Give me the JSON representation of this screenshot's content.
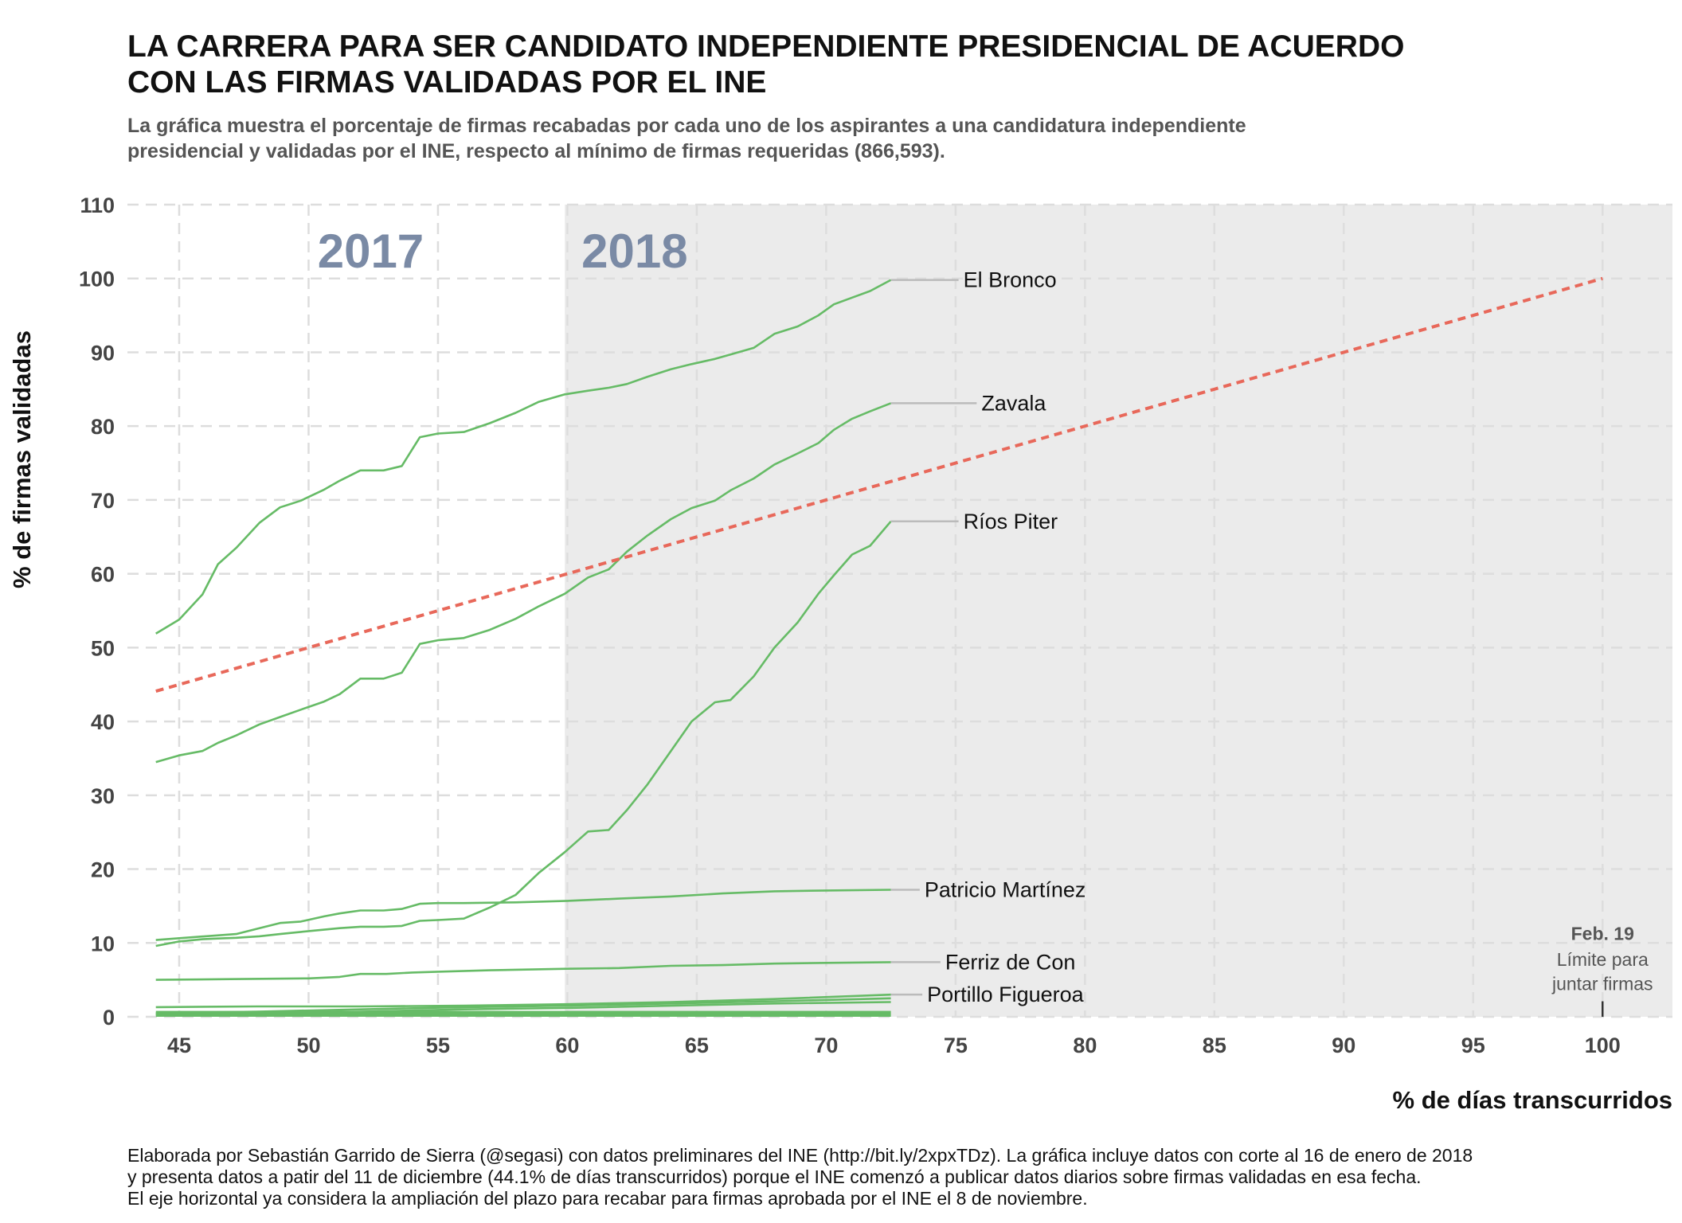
{
  "header": {
    "title_line1": "LA CARRERA PARA SER CANDIDATO INDEPENDIENTE PRESIDENCIAL DE ACUERDO",
    "title_line2": "CON LAS FIRMAS VALIDADAS POR EL INE",
    "subtitle_line1": "La gráfica muestra el porcentaje de firmas recabadas por cada uno de los aspirantes a una candidatura independiente",
    "subtitle_line2": "presidencial y validadas por el INE, respecto al mínimo de firmas requeridas (866,593)."
  },
  "caption": {
    "line1": "Elaborada por Sebastián Garrido de Sierra (@segasi) con datos preliminares del INE (http://bit.ly/2xpxTDz). La gráfica incluye datos con corte al 16 de enero de 2018",
    "line2": "y presenta datos a patir del 11 de diciembre (44.1% de días transcurridos) porque el INE comenzó a publicar datos diarios sobre firmas validadas en esa fecha.",
    "line3": "El eje horizontal ya considera la ampliación del plazo para recabar para firmas aprobada por el INE el 8 de noviembre."
  },
  "colors": {
    "series": "#66bb66",
    "reference_line": "#e8685a",
    "shaded_region": "#ebebeb",
    "year_label": "#7a8aa5",
    "grid": "#dddddd",
    "leader": "#bbbbbb"
  },
  "chart_data": {
    "type": "line",
    "xlabel": "% de días transcurridos",
    "ylabel": "% de firmas validadas",
    "xlim": [
      43,
      102.7
    ],
    "ylim": [
      0,
      110
    ],
    "x_ticks": [
      45,
      50,
      55,
      60,
      65,
      70,
      75,
      80,
      85,
      90,
      95,
      100
    ],
    "y_ticks": [
      0,
      10,
      20,
      30,
      40,
      50,
      60,
      70,
      80,
      90,
      100,
      110
    ],
    "grid": true,
    "shaded_region": {
      "x_start": 59.9,
      "x_end": 102.7
    },
    "year_labels": [
      {
        "text": "2017",
        "x": 52.4,
        "y": 101.5
      },
      {
        "text": "2018",
        "x": 62.6,
        "y": 101.5
      }
    ],
    "reference_line": {
      "x": [
        44.1,
        100
      ],
      "y": [
        44.1,
        100
      ]
    },
    "annotation": {
      "title": "Feb. 19",
      "line1": "Límite para",
      "line2": "juntar firmas",
      "x": 100
    },
    "series": [
      {
        "name": "El Bronco",
        "label_x": 75.3,
        "x": [
          44.1,
          45.0,
          45.9,
          46.5,
          47.2,
          48.1,
          48.9,
          49.7,
          50.6,
          51.2,
          52.0,
          52.9,
          53.6,
          54.3,
          55.0,
          56.0,
          57.0,
          58.0,
          58.9,
          59.9,
          60.8,
          61.6,
          62.3,
          63.1,
          64.0,
          64.8,
          65.7,
          66.3,
          67.2,
          68.0,
          68.9,
          69.7,
          70.3,
          71.0,
          71.7,
          72.5
        ],
        "y": [
          51.9,
          53.8,
          57.2,
          61.3,
          63.5,
          66.9,
          69.0,
          69.9,
          71.4,
          72.6,
          74.0,
          74.0,
          74.6,
          78.5,
          79.0,
          79.2,
          80.4,
          81.8,
          83.3,
          84.3,
          84.8,
          85.2,
          85.7,
          86.7,
          87.7,
          88.4,
          89.1,
          89.7,
          90.6,
          92.5,
          93.5,
          95.0,
          96.5,
          97.4,
          98.3,
          99.8
        ]
      },
      {
        "name": "Zavala",
        "label_x": 76.0,
        "x": [
          44.1,
          45.0,
          45.9,
          46.5,
          47.2,
          48.1,
          48.9,
          49.7,
          50.6,
          51.2,
          52.0,
          52.9,
          53.6,
          54.3,
          55.0,
          56.0,
          57.0,
          58.0,
          58.9,
          59.9,
          60.8,
          61.6,
          62.3,
          63.1,
          64.0,
          64.8,
          65.7,
          66.3,
          67.2,
          68.0,
          68.9,
          69.7,
          70.3,
          71.0,
          71.7,
          72.5
        ],
        "y": [
          34.5,
          35.4,
          36.0,
          37.1,
          38.1,
          39.6,
          40.6,
          41.6,
          42.7,
          43.7,
          45.8,
          45.8,
          46.6,
          50.5,
          51.0,
          51.3,
          52.4,
          53.9,
          55.6,
          57.3,
          59.5,
          60.6,
          63.0,
          65.2,
          67.4,
          68.9,
          69.9,
          71.3,
          72.9,
          74.8,
          76.3,
          77.7,
          79.5,
          81.0,
          82.0,
          83.1
        ]
      },
      {
        "name": "Ríos Piter",
        "label_x": 75.3,
        "x": [
          44.1,
          45.0,
          45.9,
          46.5,
          47.2,
          48.1,
          48.9,
          49.7,
          50.6,
          51.2,
          52.0,
          52.9,
          53.6,
          54.3,
          55.0,
          56.0,
          57.0,
          58.0,
          58.9,
          59.9,
          60.8,
          61.6,
          62.3,
          63.1,
          64.0,
          64.8,
          65.7,
          66.3,
          67.2,
          68.0,
          68.9,
          69.7,
          70.3,
          71.0,
          71.7,
          72.5
        ],
        "y": [
          9.6,
          10.2,
          10.5,
          10.6,
          10.7,
          10.9,
          11.2,
          11.5,
          11.8,
          12.0,
          12.2,
          12.2,
          12.3,
          13.0,
          13.1,
          13.3,
          14.8,
          16.5,
          19.5,
          22.3,
          25.1,
          25.3,
          28.0,
          31.5,
          36.0,
          40.0,
          42.6,
          42.9,
          46.1,
          50.0,
          53.4,
          57.3,
          59.8,
          62.6,
          63.8,
          67.1
        ]
      },
      {
        "name": "Patricio Martínez",
        "label_x": 73.8,
        "x": [
          44.1,
          46.0,
          47.2,
          48.1,
          48.9,
          49.7,
          50.6,
          51.2,
          52.0,
          52.9,
          53.6,
          54.3,
          55.0,
          56.0,
          58.0,
          60.0,
          62.0,
          64.0,
          66.0,
          68.0,
          70.0,
          72.5
        ],
        "y": [
          10.4,
          10.9,
          11.2,
          12.0,
          12.7,
          12.9,
          13.6,
          14.0,
          14.4,
          14.4,
          14.6,
          15.3,
          15.4,
          15.4,
          15.5,
          15.7,
          16.0,
          16.3,
          16.7,
          17.0,
          17.1,
          17.2
        ]
      },
      {
        "name": "Ferriz de Con",
        "label_x": 74.6,
        "x": [
          44.1,
          47.0,
          50.0,
          51.2,
          52.0,
          53.0,
          54.0,
          55.0,
          57.0,
          60.0,
          62.0,
          64.0,
          66.0,
          68.0,
          70.0,
          72.5
        ],
        "y": [
          5.0,
          5.1,
          5.2,
          5.4,
          5.8,
          5.8,
          6.0,
          6.1,
          6.3,
          6.5,
          6.6,
          6.9,
          7.0,
          7.2,
          7.3,
          7.4
        ]
      },
      {
        "name": "Portillo Figueroa",
        "label_x": 73.9,
        "x": [
          44.1,
          48.0,
          52.0,
          56.0,
          60.0,
          64.0,
          68.0,
          72.5
        ],
        "y": [
          1.3,
          1.4,
          1.4,
          1.5,
          1.7,
          2.0,
          2.4,
          3.0
        ]
      },
      {
        "name": "",
        "label_x": null,
        "x": [
          44.1,
          48.0,
          52.0,
          56.0,
          60.0,
          64.0,
          68.0,
          72.5
        ],
        "y": [
          0.5,
          0.7,
          1.0,
          1.3,
          1.5,
          1.8,
          2.1,
          2.5
        ]
      },
      {
        "name": "",
        "label_x": null,
        "x": [
          44.1,
          48.0,
          52.0,
          56.0,
          60.0,
          64.0,
          68.0,
          72.5
        ],
        "y": [
          0.3,
          0.5,
          0.7,
          1.0,
          1.2,
          1.5,
          1.8,
          2.0
        ]
      }
    ]
  }
}
